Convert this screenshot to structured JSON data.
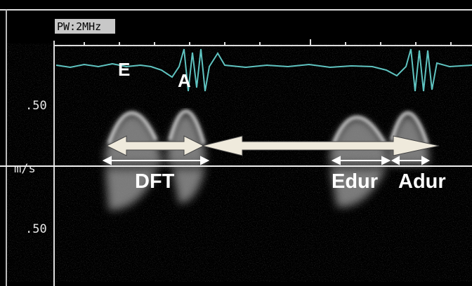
{
  "header": {
    "mode": "PW:2MHz"
  },
  "scale": {
    "upper": ".50",
    "unit": "m/s",
    "lower": ".50"
  },
  "waves": {
    "e": "E",
    "a": "A"
  },
  "annotations": {
    "dft": "DFT",
    "edur": "Edur",
    "adur": "Adur"
  }
}
